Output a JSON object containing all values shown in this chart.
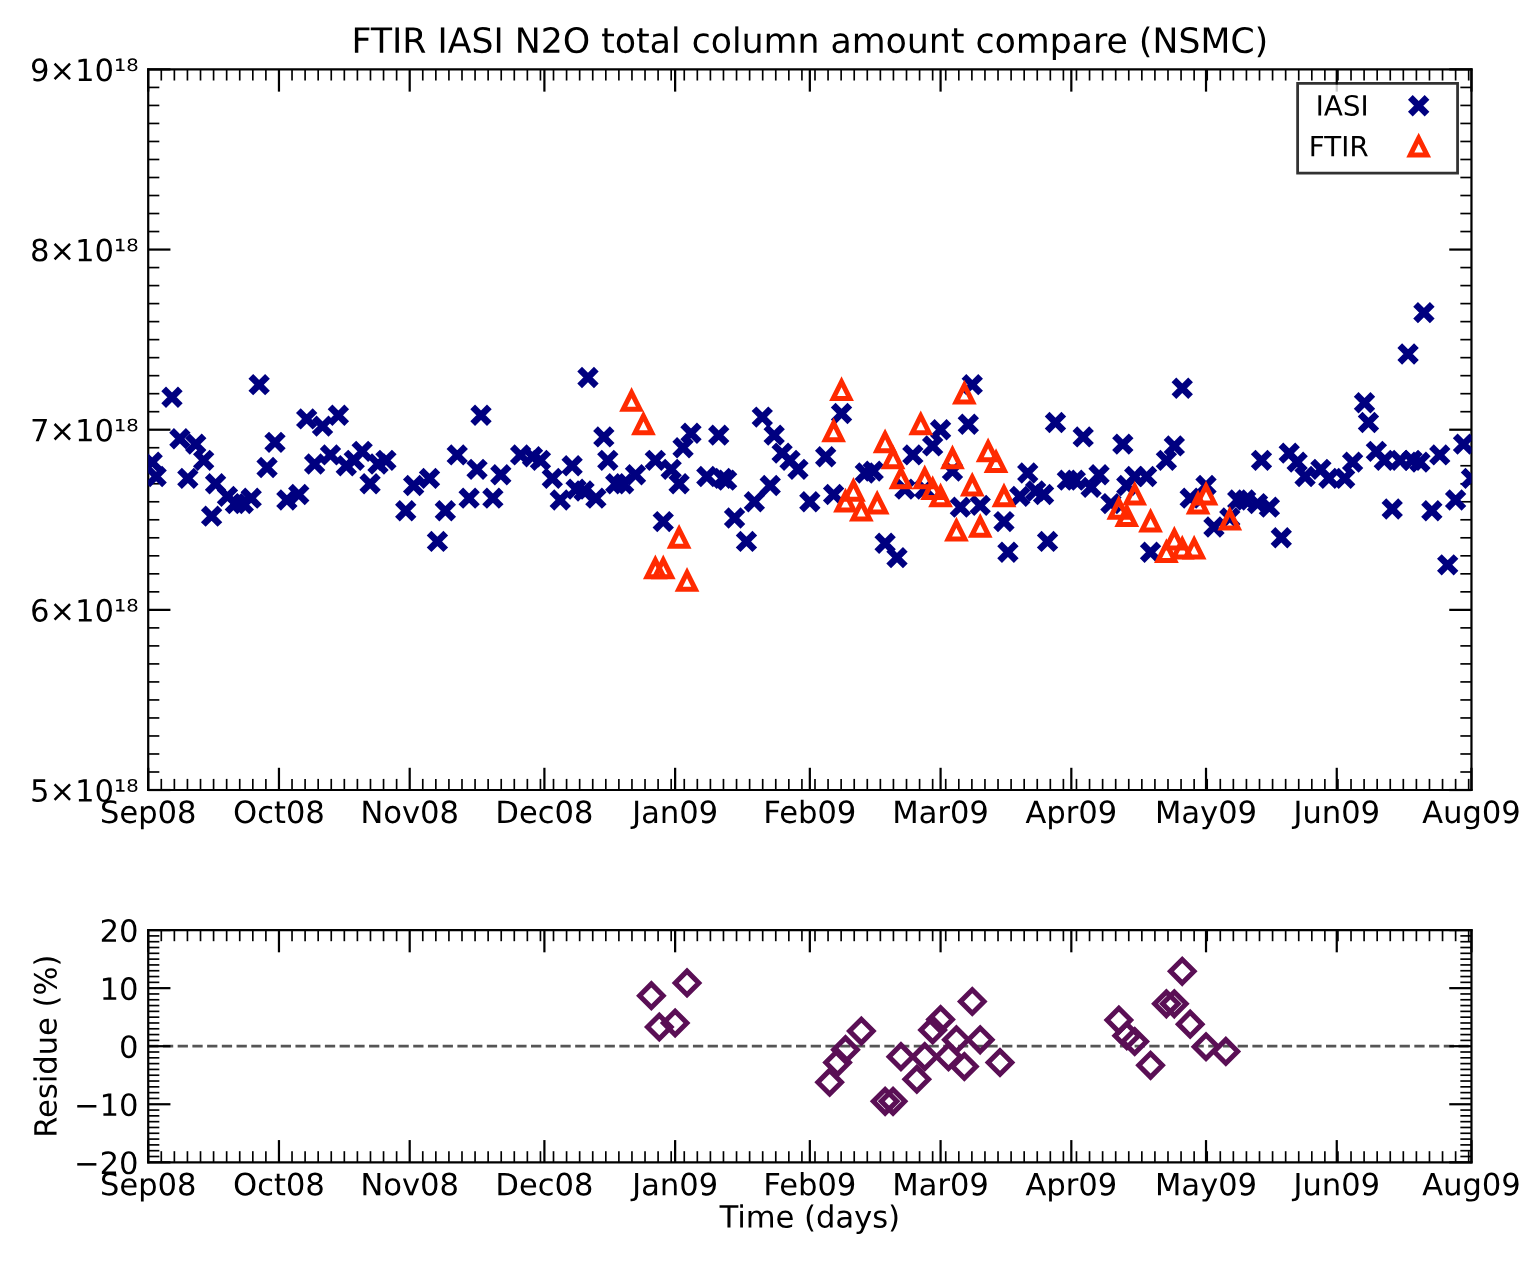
{
  "chart_data": [
    {
      "type": "scatter",
      "title": "FTIR IASI N2O total column amount compare (NSMC)",
      "legend": "top right",
      "grid": false,
      "xlim": [
        "2008-09-01",
        "2009-08-01"
      ],
      "xticks": [
        {
          "value": "2008-09-01",
          "label": "Sep08"
        },
        {
          "value": "2008-10-04",
          "label": "Oct08"
        },
        {
          "value": "2008-11-06",
          "label": "Nov08"
        },
        {
          "value": "2008-12-10",
          "label": "Dec08"
        },
        {
          "value": "2009-01-12",
          "label": "Jan09"
        },
        {
          "value": "2009-02-15",
          "label": "Feb09"
        },
        {
          "value": "2009-03-20",
          "label": "Mar09"
        },
        {
          "value": "2009-04-22",
          "label": "Apr09"
        },
        {
          "value": "2009-05-26",
          "label": "May09"
        },
        {
          "value": "2009-06-28",
          "label": "Jun09"
        },
        {
          "value": "2009-08-01",
          "label": "Aug09"
        }
      ],
      "ylim": [
        5e+18,
        9e+18
      ],
      "yticks": [
        {
          "value": 5e+18,
          "label": "5×10¹⁸"
        },
        {
          "value": 6e+18,
          "label": "6×10¹⁸"
        },
        {
          "value": 7e+18,
          "label": "7×10¹⁸"
        },
        {
          "value": 8e+18,
          "label": "8×10¹⁸"
        },
        {
          "value": 9e+18,
          "label": "9×10¹⁸"
        }
      ],
      "series": [
        {
          "name": "IASI",
          "color": "#000080",
          "marker": "cross",
          "x": [
            "2008-09-02",
            "2008-09-03",
            "2008-09-07",
            "2008-09-09",
            "2008-09-11",
            "2008-09-13",
            "2008-09-15",
            "2008-09-17",
            "2008-09-18",
            "2008-09-21",
            "2008-09-23",
            "2008-09-25",
            "2008-09-27",
            "2008-09-29",
            "2008-10-01",
            "2008-10-03",
            "2008-10-06",
            "2008-10-09",
            "2008-10-11",
            "2008-10-13",
            "2008-10-15",
            "2008-10-17",
            "2008-10-19",
            "2008-10-21",
            "2008-10-23",
            "2008-10-25",
            "2008-10-27",
            "2008-10-29",
            "2008-10-31",
            "2008-11-05",
            "2008-11-07",
            "2008-11-11",
            "2008-11-13",
            "2008-11-15",
            "2008-11-18",
            "2008-11-21",
            "2008-11-23",
            "2008-11-24",
            "2008-11-27",
            "2008-11-29",
            "2008-12-04",
            "2008-12-07",
            "2008-12-09",
            "2008-12-12",
            "2008-12-14",
            "2008-12-17",
            "2008-12-18",
            "2008-12-20",
            "2008-12-21",
            "2008-12-23",
            "2008-12-25",
            "2008-12-26",
            "2008-12-28",
            "2008-12-30",
            "2009-01-02",
            "2009-01-07",
            "2009-01-09",
            "2009-01-11",
            "2009-01-13",
            "2009-01-14",
            "2009-01-16",
            "2009-01-20",
            "2009-01-23",
            "2009-01-24",
            "2009-01-25",
            "2009-01-27",
            "2009-01-30",
            "2009-02-01",
            "2009-02-03",
            "2009-02-05",
            "2009-02-06",
            "2009-02-08",
            "2009-02-10",
            "2009-02-12",
            "2009-02-15",
            "2009-02-19",
            "2009-02-21",
            "2009-02-23",
            "2009-03-01",
            "2009-03-03",
            "2009-03-06",
            "2009-03-09",
            "2009-03-11",
            "2009-03-13",
            "2009-03-16",
            "2009-03-18",
            "2009-03-20",
            "2009-03-23",
            "2009-03-25",
            "2009-03-27",
            "2009-03-28",
            "2009-03-30",
            "2009-04-05",
            "2009-04-06",
            "2009-04-09",
            "2009-04-11",
            "2009-04-13",
            "2009-04-15",
            "2009-04-16",
            "2009-04-18",
            "2009-04-21",
            "2009-04-23",
            "2009-04-25",
            "2009-04-27",
            "2009-04-29",
            "2009-05-02",
            "2009-05-05",
            "2009-05-06",
            "2009-05-08",
            "2009-05-11",
            "2009-05-12",
            "2009-05-16",
            "2009-05-18",
            "2009-05-20",
            "2009-05-22",
            "2009-05-26",
            "2009-05-28",
            "2009-06-01",
            "2009-06-03",
            "2009-06-05",
            "2009-06-08",
            "2009-06-09",
            "2009-06-11",
            "2009-06-14",
            "2009-06-16",
            "2009-06-18",
            "2009-06-20",
            "2009-06-24",
            "2009-06-26",
            "2009-06-30",
            "2009-07-02",
            "2009-07-05",
            "2009-07-06",
            "2009-07-08",
            "2009-07-10",
            "2009-07-12",
            "2009-07-14",
            "2009-07-16",
            "2009-07-17",
            "2009-07-19",
            "2009-07-20",
            "2009-07-22",
            "2009-07-24",
            "2009-07-26",
            "2009-07-28",
            "2009-07-30",
            "2009-08-01"
          ],
          "values": [
            6.82e+18,
            6.74e+18,
            7.18e+18,
            6.95e+18,
            6.73e+18,
            6.92e+18,
            6.83e+18,
            6.52e+18,
            6.7e+18,
            6.63e+18,
            6.59e+18,
            6.59e+18,
            6.62e+18,
            7.25e+18,
            6.79e+18,
            6.93e+18,
            6.61e+18,
            6.64e+18,
            7.06e+18,
            6.81e+18,
            7.02e+18,
            6.86e+18,
            7.08e+18,
            6.8e+18,
            6.83e+18,
            6.88e+18,
            6.7e+18,
            6.81e+18,
            6.83e+18,
            6.55e+18,
            6.69e+18,
            6.73e+18,
            6.38e+18,
            6.55e+18,
            6.86e+18,
            6.62e+18,
            6.78e+18,
            7.08e+18,
            6.62e+18,
            6.75e+18,
            6.86e+18,
            6.85e+18,
            6.83e+18,
            6.73e+18,
            6.61e+18,
            6.8e+18,
            6.67e+18,
            6.66e+18,
            7.29e+18,
            6.62e+18,
            6.96e+18,
            6.83e+18,
            6.7e+18,
            6.7e+18,
            6.75e+18,
            6.83e+18,
            6.49e+18,
            6.78e+18,
            6.7e+18,
            6.9e+18,
            6.98e+18,
            6.74e+18,
            6.97e+18,
            6.73e+18,
            6.72e+18,
            6.51e+18,
            6.38e+18,
            6.6e+18,
            7.07e+18,
            6.69e+18,
            6.97e+18,
            6.87e+18,
            6.83e+18,
            6.78e+18,
            6.6e+18,
            6.85e+18,
            6.64e+18,
            7.09e+18,
            6.76e+18,
            6.77e+18,
            6.37e+18,
            6.29e+18,
            6.67e+18,
            6.86e+18,
            6.67e+18,
            6.91e+18,
            7e+18,
            6.77e+18,
            6.57e+18,
            7.03e+18,
            7.25e+18,
            6.58e+18,
            6.49e+18,
            6.32e+18,
            6.63e+18,
            6.76e+18,
            6.66e+18,
            6.64e+18,
            6.38e+18,
            7.04e+18,
            6.72e+18,
            6.72e+18,
            6.96e+18,
            6.68e+18,
            6.75e+18,
            6.59e+18,
            6.92e+18,
            6.69e+18,
            6.74e+18,
            6.74e+18,
            6.32e+18,
            6.83e+18,
            6.91e+18,
            7.23e+18,
            6.62e+18,
            6.69e+18,
            6.46e+18,
            6.51e+18,
            6.61e+18,
            6.61e+18,
            6.59e+18,
            6.83e+18,
            6.57e+18,
            6.4e+18,
            6.87e+18,
            6.82e+18,
            6.74e+18,
            6.78e+18,
            6.73e+18,
            6.73e+18,
            6.82e+18,
            7.15e+18,
            7.04e+18,
            6.88e+18,
            6.83e+18,
            6.56e+18,
            6.83e+18,
            7.42e+18,
            6.83e+18,
            6.82e+18,
            7.65e+18,
            6.55e+18,
            6.86e+18,
            6.25e+18,
            6.61e+18,
            6.92e+18,
            6.73e+18
          ]
        },
        {
          "name": "FTIR",
          "color": "#ff2a00",
          "marker": "triangle",
          "x": [
            "2009-01-01",
            "2009-01-04",
            "2009-01-07",
            "2009-01-09",
            "2009-01-13",
            "2009-01-15",
            "2009-02-21",
            "2009-02-23",
            "2009-02-24",
            "2009-02-26",
            "2009-02-28",
            "2009-03-04",
            "2009-03-06",
            "2009-03-08",
            "2009-03-10",
            "2009-03-15",
            "2009-03-16",
            "2009-03-18",
            "2009-03-20",
            "2009-03-23",
            "2009-03-24",
            "2009-03-26",
            "2009-03-28",
            "2009-03-30",
            "2009-04-01",
            "2009-04-03",
            "2009-04-05",
            "2009-05-04",
            "2009-05-06",
            "2009-05-08",
            "2009-05-12",
            "2009-05-16",
            "2009-05-18",
            "2009-05-20",
            "2009-05-23",
            "2009-05-24",
            "2009-05-26",
            "2009-06-01"
          ],
          "values": [
            7.16e+18,
            7.03e+18,
            6.23e+18,
            6.23e+18,
            6.4e+18,
            6.16e+18,
            6.99e+18,
            7.22e+18,
            6.6e+18,
            6.66e+18,
            6.55e+18,
            6.59e+18,
            6.93e+18,
            6.84e+18,
            6.73e+18,
            7.03e+18,
            6.73e+18,
            6.67e+18,
            6.63e+18,
            6.84e+18,
            6.44e+18,
            7.2e+18,
            6.69e+18,
            6.46e+18,
            6.88e+18,
            6.82e+18,
            6.63e+18,
            6.56e+18,
            6.52e+18,
            6.64e+18,
            6.49e+18,
            6.32e+18,
            6.39e+18,
            6.34e+18,
            6.34e+18,
            6.59e+18,
            6.64e+18,
            6.5e+18
          ]
        }
      ]
    },
    {
      "type": "scatter",
      "xlabel": "Time (days)",
      "ylabel": "Residue (%)",
      "grid": false,
      "xlim": [
        "2008-09-01",
        "2009-08-01"
      ],
      "xticks": [
        {
          "value": "2008-09-01",
          "label": "Sep08"
        },
        {
          "value": "2008-10-04",
          "label": "Oct08"
        },
        {
          "value": "2008-11-06",
          "label": "Nov08"
        },
        {
          "value": "2008-12-10",
          "label": "Dec08"
        },
        {
          "value": "2009-01-12",
          "label": "Jan09"
        },
        {
          "value": "2009-02-15",
          "label": "Feb09"
        },
        {
          "value": "2009-03-20",
          "label": "Mar09"
        },
        {
          "value": "2009-04-22",
          "label": "Apr09"
        },
        {
          "value": "2009-05-26",
          "label": "May09"
        },
        {
          "value": "2009-06-28",
          "label": "Jun09"
        },
        {
          "value": "2009-08-01",
          "label": "Aug09"
        }
      ],
      "ylim": [
        -20,
        20
      ],
      "yticks": [
        {
          "value": -20,
          "label": "−20"
        },
        {
          "value": -10,
          "label": "−10"
        },
        0,
        10,
        20
      ],
      "ref_lines": [
        {
          "axis": "y",
          "value": 0,
          "color": "#555555",
          "line_style": "dashed"
        }
      ],
      "series": [
        {
          "color": "#5a0f55",
          "marker": "diamond",
          "x": [
            "2009-01-06",
            "2009-01-08",
            "2009-01-12",
            "2009-01-15",
            "2009-02-20",
            "2009-02-22",
            "2009-02-24",
            "2009-02-28",
            "2009-03-06",
            "2009-03-08",
            "2009-03-10",
            "2009-03-14",
            "2009-03-16",
            "2009-03-18",
            "2009-03-20",
            "2009-03-22",
            "2009-03-24",
            "2009-03-26",
            "2009-03-28",
            "2009-03-30",
            "2009-04-04",
            "2009-05-04",
            "2009-05-06",
            "2009-05-08",
            "2009-05-12",
            "2009-05-16",
            "2009-05-18",
            "2009-05-20",
            "2009-05-22",
            "2009-05-26",
            "2009-05-31"
          ],
          "values": [
            8.7,
            3.3,
            4.0,
            10.9,
            -6.2,
            -2.8,
            -0.6,
            2.6,
            -9.5,
            -9.5,
            -1.8,
            -5.7,
            -1.8,
            2.8,
            4.6,
            -1.8,
            1.1,
            -3.5,
            7.7,
            1.1,
            -2.8,
            4.5,
            1.8,
            0.8,
            -3.3,
            7.3,
            7.3,
            12.9,
            3.8,
            -0.1,
            -0.9
          ]
        }
      ]
    }
  ]
}
